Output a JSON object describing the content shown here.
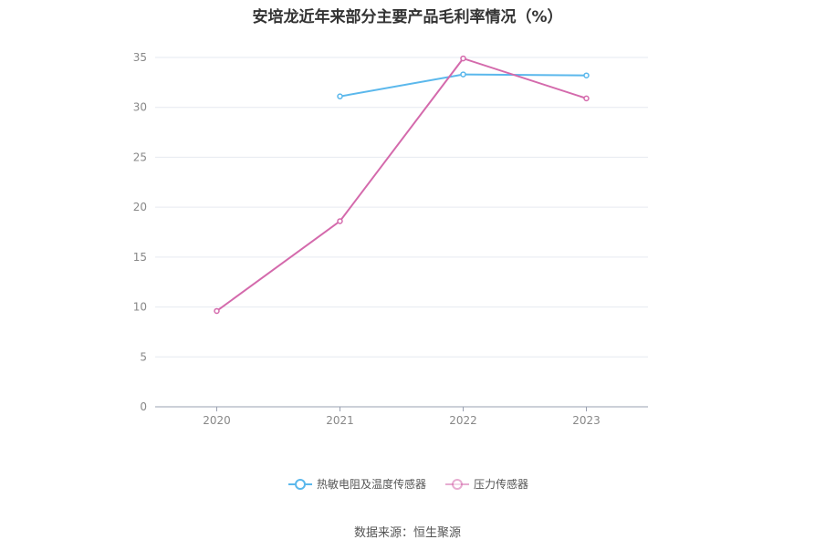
{
  "chart_data": {
    "type": "line",
    "title": "安培龙近年来部分主要产品毛利率情况（%）",
    "categories": [
      "2020",
      "2021",
      "2022",
      "2023"
    ],
    "ylim": [
      0,
      35
    ],
    "yticks": [
      "0",
      "5",
      "10",
      "15",
      "20",
      "25",
      "30",
      "35"
    ],
    "grid": true,
    "legend_position": "bottom",
    "series": [
      {
        "name": "热敏电阻及温度传感器",
        "color": "#5bb8ec",
        "values": [
          null,
          31.1,
          33.3,
          33.2
        ]
      },
      {
        "name": "压力传感器",
        "color": "#d46aac",
        "values": [
          9.6,
          18.6,
          34.9,
          30.9
        ]
      }
    ]
  },
  "footer": {
    "source": "数据来源：恒生聚源"
  }
}
